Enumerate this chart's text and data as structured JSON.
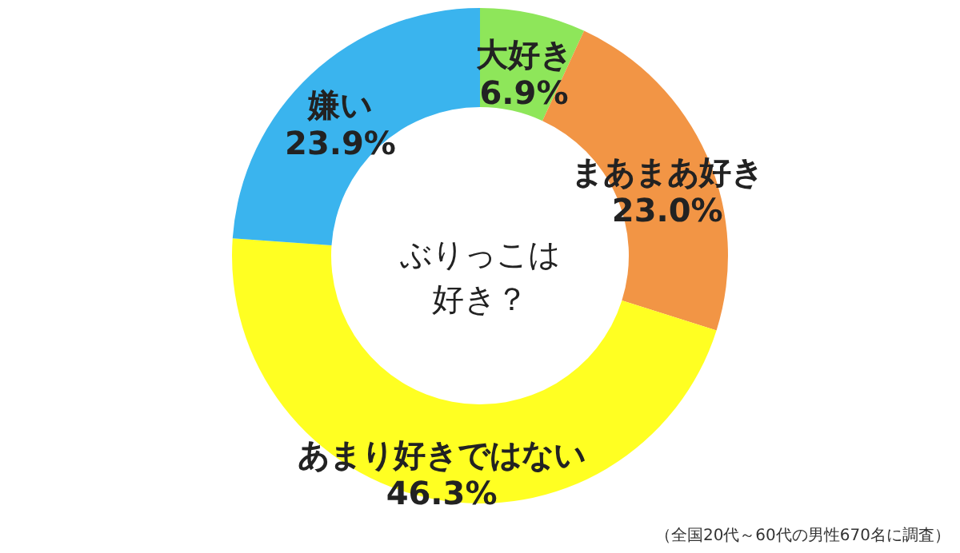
{
  "chart_data": {
    "type": "donut",
    "title": "ぶりっこは好き？",
    "categories": [
      "大好き",
      "まあまあ好き",
      "あまり好きではない",
      "嫌い"
    ],
    "values": [
      6.9,
      23.0,
      46.3,
      23.9
    ],
    "colors": [
      "#8ee65a",
      "#f29545",
      "#ffff22",
      "#3ab4ee"
    ],
    "value_labels": [
      "6.9%",
      "23.0%",
      "46.3%",
      "23.9%"
    ],
    "annotations": [
      "（全国20代～60代の男性670名に調査）"
    ]
  }
}
